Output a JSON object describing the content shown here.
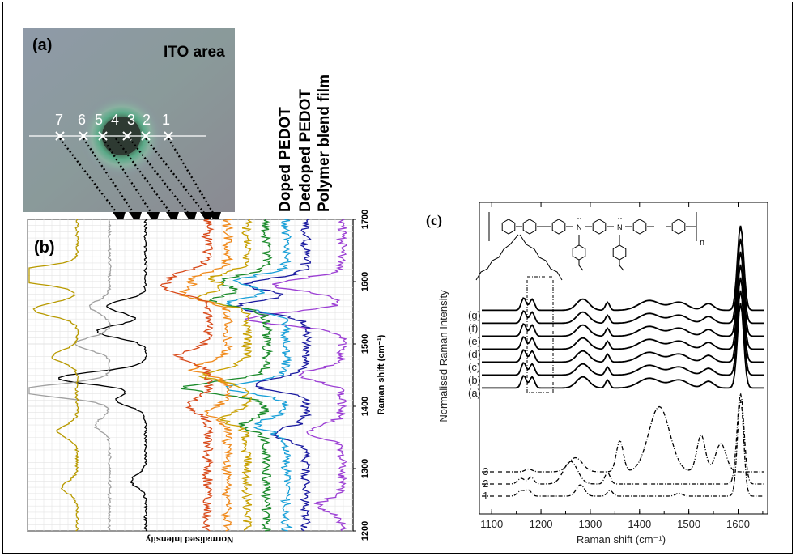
{
  "panels": {
    "a": {
      "label": "(a)",
      "region_text": "ITO area",
      "points": [
        "7",
        "6",
        "5",
        "4",
        "3",
        "2",
        "1"
      ]
    },
    "legend": [
      {
        "text": "Doped PEDOT",
        "color": "#000000"
      },
      {
        "text": "Dedoped PEDOT",
        "color": "#8c8c8c"
      },
      {
        "text": "Polymer blend film",
        "color": "#8a7a00"
      }
    ]
  },
  "chart_data": [
    {
      "panel": "(b)",
      "type": "line",
      "title": "",
      "xlabel": "Normalised Intensity",
      "ylabel": "Raman shift (cm⁻¹)",
      "ylim": [
        1200,
        1700
      ],
      "yticks": [
        1200,
        1300,
        1400,
        1500,
        1600,
        1700
      ],
      "orientation": "rotated",
      "series": [
        {
          "color": "#9c3fd4",
          "offset": 0.0,
          "peaks": [
            [
              1540,
              0.95
            ],
            [
              1595,
              0.7
            ],
            [
              1450,
              0.45
            ],
            [
              1360,
              0.35
            ],
            [
              1240,
              0.25
            ]
          ]
        },
        {
          "color": "#1a1aa0",
          "offset": 0.55,
          "peaks": [
            [
              1560,
              0.7
            ],
            [
              1595,
              0.6
            ],
            [
              1435,
              0.55
            ],
            [
              1355,
              0.35
            ]
          ]
        },
        {
          "color": "#1aa0d8",
          "offset": 0.85,
          "peaks": [
            [
              1565,
              0.6
            ],
            [
              1600,
              0.5
            ],
            [
              1430,
              0.6
            ],
            [
              1370,
              0.3
            ]
          ]
        },
        {
          "color": "#1a8a2a",
          "offset": 1.15,
          "peaks": [
            [
              1570,
              0.55
            ],
            [
              1600,
              0.45
            ],
            [
              1430,
              0.85
            ],
            [
              1370,
              0.25
            ]
          ]
        },
        {
          "color": "#c8a000",
          "offset": 1.45,
          "peaks": [
            [
              1575,
              0.5
            ],
            [
              1605,
              0.35
            ],
            [
              1450,
              0.45
            ],
            [
              1380,
              0.25
            ]
          ]
        },
        {
          "color": "#f08a1c",
          "offset": 1.75,
          "peaks": [
            [
              1580,
              0.45
            ],
            [
              1605,
              0.35
            ],
            [
              1460,
              0.35
            ],
            [
              1390,
              0.2
            ]
          ]
        },
        {
          "color": "#d84a1a",
          "offset": 2.05,
          "peaks": [
            [
              1590,
              0.4
            ],
            [
              1610,
              0.3
            ],
            [
              1480,
              0.3
            ],
            [
              1400,
              0.2
            ]
          ]
        },
        {
          "color": "#000000",
          "offset": 3.0,
          "peaks": [
            [
              1445,
              0.9
            ],
            [
              1520,
              0.5
            ],
            [
              1560,
              0.4
            ],
            [
              1410,
              0.3
            ],
            [
              1280,
              0.15
            ]
          ]
        },
        {
          "color": "#a0a0a0",
          "offset": 3.55,
          "peaks": [
            [
              1425,
              0.95
            ],
            [
              1500,
              0.35
            ],
            [
              1560,
              0.2
            ],
            [
              1370,
              0.15
            ]
          ]
        },
        {
          "color": "#b89a00",
          "offset": 4.05,
          "peaks": [
            [
              1610,
              1.1
            ],
            [
              1555,
              0.45
            ],
            [
              1480,
              0.25
            ],
            [
              1360,
              0.2
            ],
            [
              1270,
              0.15
            ]
          ]
        }
      ]
    },
    {
      "panel": "(c)",
      "type": "line",
      "title": "",
      "xlabel": "Raman shift (cm⁻¹)",
      "ylabel": "Normalised Raman Intensity",
      "xlim": [
        1075,
        1660
      ],
      "xticks": [
        1100,
        1200,
        1300,
        1400,
        1500,
        1600
      ],
      "series": [
        {
          "name": "(g)",
          "style": "solid-dotted",
          "offset": 6.0,
          "kind": "polymer"
        },
        {
          "name": "(f)",
          "style": "solid-dotted",
          "offset": 5.0,
          "kind": "polymer"
        },
        {
          "name": "(e)",
          "style": "solid-dotted",
          "offset": 4.0,
          "kind": "polymer"
        },
        {
          "name": "(d)",
          "style": "solid-dotted",
          "offset": 3.0,
          "kind": "polymer"
        },
        {
          "name": "(c)",
          "style": "solid-dotted",
          "offset": 2.0,
          "kind": "polymer"
        },
        {
          "name": "(b)",
          "style": "solid-dotted",
          "offset": 1.0,
          "kind": "polymer"
        },
        {
          "name": "(a)",
          "style": "solid-dotted",
          "offset": 0.0,
          "kind": "polymer"
        },
        {
          "name": "3",
          "style": "dash-dot",
          "kind": "ref3"
        },
        {
          "name": "2",
          "style": "dash-dot",
          "kind": "ref2"
        },
        {
          "name": "1",
          "style": "dash-dot",
          "kind": "ref1"
        }
      ]
    }
  ]
}
